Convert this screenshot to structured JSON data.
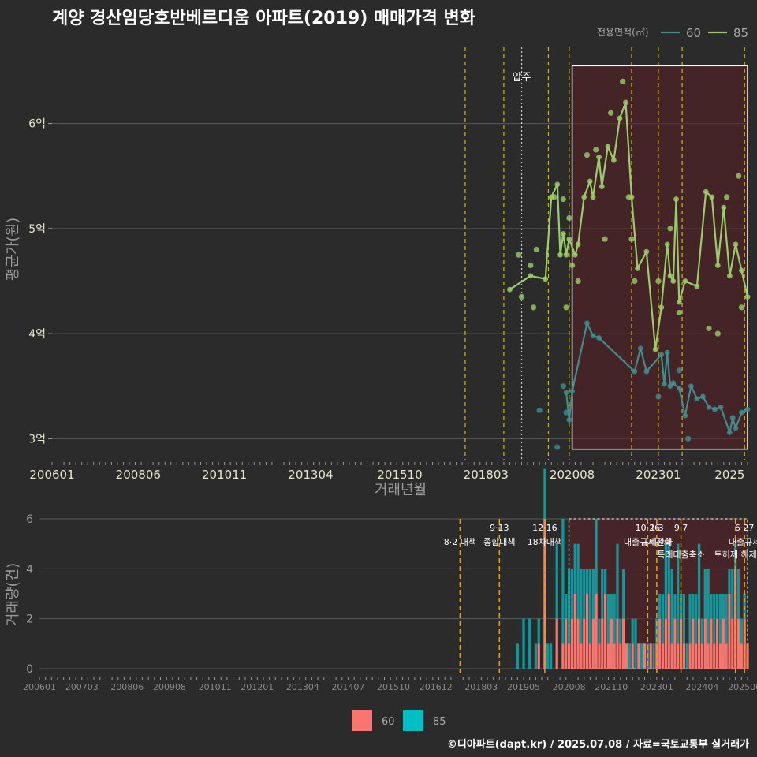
{
  "title": "계양 경산임당호반베르디움 아파트(2019) 매매가격 변화",
  "footer": "©디아파트(dapt.kr) / 2025.07.08 / 자료=국토교통부 실거래가",
  "colors": {
    "background": "#2b2b2b",
    "grid": "#5a5a5a",
    "s60_line": "#3f8d8d",
    "s85_line": "#9acd6a",
    "s60_bar": "#f8766d",
    "s85_bar": "#00bfc4",
    "policy_line": "#d4b800",
    "highlight_fill": "#5a1f24",
    "highlight_border": "#ffffff"
  },
  "chart_data": [
    {
      "type": "line",
      "title": "계양 경산임당호반베르디움 아파트(2019) 매매가격 변화",
      "xlabel": "거래년월",
      "ylabel": "평균가(원)",
      "legend": {
        "title": "전용면적(㎡)",
        "position": "top-right",
        "entries": [
          "60",
          "85"
        ]
      },
      "xlim": [
        "2006-01",
        "2025-07"
      ],
      "ylim": [
        2.8,
        6.8
      ],
      "y_unit": "억",
      "x_ticks": [
        "200601",
        "200806",
        "201011",
        "201304",
        "201510",
        "201803",
        "202008",
        "202301",
        "2025"
      ],
      "y_ticks": [
        "3억",
        "4억",
        "5억",
        "6억"
      ],
      "annotations": [
        {
          "label": "압주",
          "x": "2019-03"
        }
      ],
      "policy_lines": [
        "2017-08",
        "2018-09",
        "2019-12",
        "2020-07",
        "2022-04",
        "2023-01",
        "2023-09",
        "2025-06"
      ],
      "highlight_range": {
        "x": [
          "2020-08",
          "2025-07"
        ],
        "y": [
          2.9,
          6.55
        ]
      },
      "series": [
        {
          "name": "60",
          "points": [
            [
              "2020-06",
              3.44
            ],
            [
              "2020-07",
              3.18
            ],
            [
              "2020-08",
              3.45
            ],
            [
              "2021-01",
              4.1
            ],
            [
              "2021-03",
              3.98
            ],
            [
              "2021-05",
              3.96
            ],
            [
              "2022-05",
              3.64
            ],
            [
              "2022-07",
              3.86
            ],
            [
              "2022-09",
              3.64
            ],
            [
              "2023-02",
              3.8
            ],
            [
              "2023-03",
              3.52
            ],
            [
              "2023-04",
              3.82
            ],
            [
              "2023-05",
              3.5
            ],
            [
              "2023-06",
              3.53
            ],
            [
              "2023-08",
              3.48
            ],
            [
              "2023-10",
              3.22
            ],
            [
              "2023-12",
              3.5
            ],
            [
              "2024-02",
              3.38
            ],
            [
              "2024-04",
              3.4
            ],
            [
              "2024-06",
              3.3
            ],
            [
              "2024-08",
              3.28
            ],
            [
              "2024-10",
              3.3
            ],
            [
              "2025-01",
              3.06
            ],
            [
              "2025-02",
              3.2
            ],
            [
              "2025-03",
              3.1
            ],
            [
              "2025-05",
              3.25
            ],
            [
              "2025-07",
              3.28
            ]
          ]
        },
        {
          "name": "85",
          "points": [
            [
              "2018-11",
              4.42
            ],
            [
              "2019-06",
              4.55
            ],
            [
              "2019-11",
              4.52
            ],
            [
              "2020-01",
              5.3
            ],
            [
              "2020-03",
              5.42
            ],
            [
              "2020-04",
              4.75
            ],
            [
              "2020-05",
              4.95
            ],
            [
              "2020-06",
              4.75
            ],
            [
              "2020-07",
              4.9
            ],
            [
              "2020-09",
              4.75
            ],
            [
              "2020-10",
              4.85
            ],
            [
              "2020-12",
              5.3
            ],
            [
              "2021-02",
              5.45
            ],
            [
              "2021-03",
              5.3
            ],
            [
              "2021-05",
              5.68
            ],
            [
              "2021-06",
              5.4
            ],
            [
              "2021-08",
              5.78
            ],
            [
              "2021-10",
              5.65
            ],
            [
              "2021-12",
              6.05
            ],
            [
              "2022-02",
              6.2
            ],
            [
              "2022-04",
              5.3
            ],
            [
              "2022-06",
              4.62
            ],
            [
              "2022-09",
              4.78
            ],
            [
              "2022-12",
              3.85
            ],
            [
              "2023-02",
              4.25
            ],
            [
              "2023-04",
              4.85
            ],
            [
              "2023-05",
              4.55
            ],
            [
              "2023-06",
              4.5
            ],
            [
              "2023-07",
              5.28
            ],
            [
              "2023-08",
              4.3
            ],
            [
              "2023-10",
              4.5
            ],
            [
              "2024-02",
              4.45
            ],
            [
              "2024-05",
              5.35
            ],
            [
              "2024-07",
              5.3
            ],
            [
              "2024-09",
              4.65
            ],
            [
              "2024-11",
              5.2
            ],
            [
              "2025-01",
              4.55
            ],
            [
              "2025-03",
              4.85
            ],
            [
              "2025-05",
              4.6
            ],
            [
              "2025-07",
              4.35
            ]
          ]
        }
      ],
      "scatter_points": [
        [
          "2019-02",
          4.75
        ],
        [
          "2019-03",
          4.35
        ],
        [
          "2019-06",
          4.65
        ],
        [
          "2019-07",
          4.25
        ],
        [
          "2019-08",
          4.8
        ],
        [
          "2020-02",
          5.3
        ],
        [
          "2020-05",
          5.28
        ],
        [
          "2020-06",
          4.25
        ],
        [
          "2020-07",
          5.1
        ],
        [
          "2020-08",
          4.65
        ],
        [
          "2020-10",
          4.5
        ],
        [
          "2021-01",
          5.7
        ],
        [
          "2021-04",
          5.75
        ],
        [
          "2021-07",
          4.9
        ],
        [
          "2021-09",
          6.1
        ],
        [
          "2022-01",
          6.4
        ],
        [
          "2022-03",
          5.3
        ],
        [
          "2022-04",
          4.9
        ],
        [
          "2022-05",
          4.5
        ],
        [
          "2023-01",
          4.5
        ],
        [
          "2023-05",
          5.0
        ],
        [
          "2023-08",
          4.2
        ],
        [
          "2024-06",
          4.05
        ],
        [
          "2024-09",
          4.0
        ],
        [
          "2024-12",
          5.3
        ],
        [
          "2025-04",
          5.5
        ],
        [
          "2025-05",
          4.25
        ],
        [
          "2020-05",
          3.5
        ],
        [
          "2020-06",
          3.25
        ],
        [
          "2020-03",
          2.92
        ],
        [
          "2019-09",
          3.27
        ],
        [
          "2023-01",
          3.4
        ],
        [
          "2023-08",
          3.65
        ],
        [
          "2023-11",
          3.0
        ]
      ]
    },
    {
      "type": "bar",
      "xlabel": "",
      "ylabel": "거래량(건)",
      "legend": {
        "position": "bottom",
        "entries": [
          "60",
          "85"
        ]
      },
      "ylim": [
        0,
        6
      ],
      "y_ticks": [
        "0",
        "2",
        "4",
        "6"
      ],
      "x_ticks": [
        "200601",
        "200703",
        "200806",
        "200908",
        "201011",
        "201201",
        "201304",
        "201407",
        "201510",
        "201612",
        "201803",
        "201905",
        "202008",
        "202110",
        "202301",
        "202404",
        "202506"
      ],
      "policy_labels": [
        {
          "date": "2017-08",
          "line1": "",
          "line2": "8·2 대책"
        },
        {
          "date": "2018-09",
          "line1": "9·13",
          "line2": "종합대책"
        },
        {
          "date": "2019-12",
          "line1": "12·16",
          "line2": "18차대책"
        },
        {
          "date": "2022-10",
          "line1": "10·26",
          "line2": "대출규제강화"
        },
        {
          "date": "2023-01",
          "line1": "1·3",
          "line2": "규제완화"
        },
        {
          "date": "2023-09",
          "line1": "9·7",
          "line2": "특례대출축소"
        },
        {
          "date": "2025-06",
          "line1": "6·27",
          "line2": "대출규제"
        },
        {
          "date": "2025-03",
          "line1": "",
          "line2": "토허제 해제"
        }
      ],
      "highlight_range": {
        "x": [
          "2020-08",
          "2025-07"
        ],
        "y": [
          0,
          6
        ]
      },
      "bars": [
        [
          "2019-03",
          0,
          1
        ],
        [
          "2019-05",
          0,
          2
        ],
        [
          "2019-07",
          0,
          2
        ],
        [
          "2019-09",
          0,
          1
        ],
        [
          "2019-10",
          1,
          1
        ],
        [
          "2019-12",
          6,
          2
        ],
        [
          "2020-01",
          0,
          1
        ],
        [
          "2020-02",
          0,
          1
        ],
        [
          "2020-04",
          2,
          3
        ],
        [
          "2020-06",
          1,
          5
        ],
        [
          "2020-07",
          2,
          1
        ],
        [
          "2020-08",
          1,
          3
        ],
        [
          "2020-09",
          2,
          2
        ],
        [
          "2020-10",
          3,
          2
        ],
        [
          "2020-11",
          2,
          3
        ],
        [
          "2020-12",
          1,
          3
        ],
        [
          "2021-01",
          2,
          2
        ],
        [
          "2021-02",
          3,
          1
        ],
        [
          "2021-03",
          1,
          3
        ],
        [
          "2021-04",
          2,
          2
        ],
        [
          "2021-05",
          3,
          3
        ],
        [
          "2021-06",
          1,
          1
        ],
        [
          "2021-07",
          2,
          2
        ],
        [
          "2021-08",
          3,
          1
        ],
        [
          "2021-09",
          1,
          2
        ],
        [
          "2021-10",
          2,
          1
        ],
        [
          "2021-11",
          1,
          2
        ],
        [
          "2021-12",
          2,
          3
        ],
        [
          "2022-01",
          1,
          1
        ],
        [
          "2022-02",
          2,
          2
        ],
        [
          "2022-03",
          1,
          0
        ],
        [
          "2022-04",
          0,
          1
        ],
        [
          "2022-05",
          1,
          1
        ],
        [
          "2022-06",
          0,
          2
        ],
        [
          "2022-07",
          1,
          0
        ],
        [
          "2022-08",
          0,
          1
        ],
        [
          "2022-09",
          1,
          0
        ],
        [
          "2022-10",
          0,
          1
        ],
        [
          "2022-11",
          1,
          0
        ],
        [
          "2022-12",
          0,
          1
        ],
        [
          "2023-01",
          1,
          1
        ],
        [
          "2023-02",
          2,
          1
        ],
        [
          "2023-03",
          1,
          2
        ],
        [
          "2023-04",
          2,
          3
        ],
        [
          "2023-05",
          3,
          2
        ],
        [
          "2023-06",
          1,
          3
        ],
        [
          "2023-07",
          2,
          1
        ],
        [
          "2023-08",
          1,
          4
        ],
        [
          "2023-09",
          2,
          1
        ],
        [
          "2023-10",
          1,
          2
        ],
        [
          "2023-11",
          0,
          1
        ],
        [
          "2023-12",
          1,
          2
        ],
        [
          "2024-01",
          2,
          1
        ],
        [
          "2024-02",
          1,
          2
        ],
        [
          "2024-03",
          2,
          3
        ],
        [
          "2024-04",
          1,
          1
        ],
        [
          "2024-05",
          2,
          2
        ],
        [
          "2024-06",
          1,
          3
        ],
        [
          "2024-07",
          2,
          1
        ],
        [
          "2024-08",
          1,
          2
        ],
        [
          "2024-09",
          2,
          1
        ],
        [
          "2024-10",
          1,
          2
        ],
        [
          "2024-11",
          2,
          1
        ],
        [
          "2024-12",
          1,
          2
        ],
        [
          "2025-01",
          3,
          1
        ],
        [
          "2025-02",
          2,
          2
        ],
        [
          "2025-03",
          4,
          1
        ],
        [
          "2025-04",
          2,
          2
        ],
        [
          "2025-05",
          1,
          1
        ],
        [
          "2025-06",
          2,
          1
        ],
        [
          "2025-07",
          1,
          0
        ]
      ]
    }
  ]
}
